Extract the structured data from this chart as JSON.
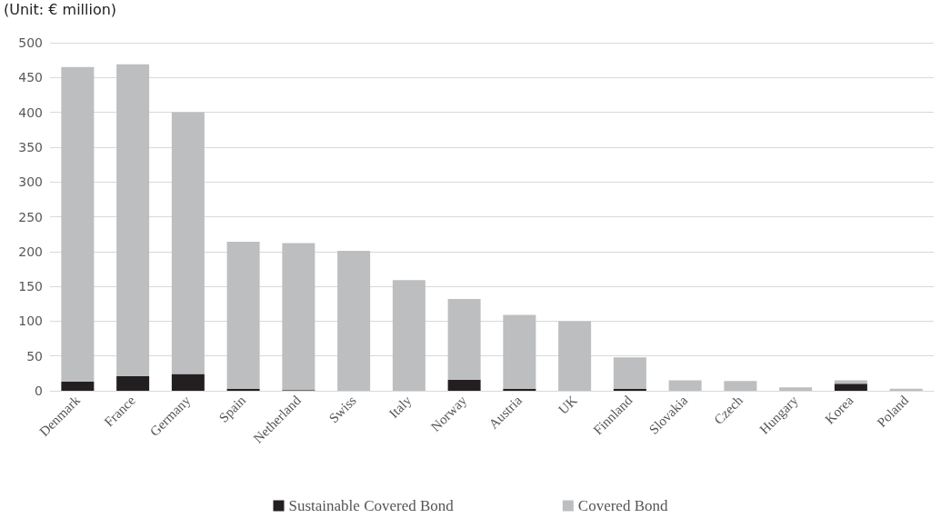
{
  "chart_data": {
    "type": "bar",
    "stacked": true,
    "annotations": [
      "(Unit: € million)"
    ],
    "categories": [
      "Denmark",
      "France",
      "Germany",
      "Spain",
      "Netherland",
      "Swiss",
      "Italy",
      "Norway",
      "Austria",
      "UK",
      "Finnland",
      "Slovakia",
      "Czech",
      "Hungary",
      "Korea",
      "Poland"
    ],
    "series": [
      {
        "name": "Sustainable Covered Bond",
        "color": "#231f20",
        "values": [
          13,
          21,
          24,
          3,
          1,
          0,
          0,
          16,
          3,
          0,
          3,
          0,
          0,
          0,
          10,
          0
        ]
      },
      {
        "name": "Covered Bond",
        "color": "#bcbec0",
        "values": [
          452,
          448,
          376,
          211,
          211,
          201,
          159,
          116,
          106,
          100,
          45,
          15,
          14,
          5,
          5,
          3
        ]
      }
    ],
    "ylim": [
      0,
      500
    ],
    "yticks": [
      0,
      50,
      100,
      150,
      200,
      250,
      300,
      350,
      400,
      450,
      500
    ],
    "grid": "y",
    "legend": "bottom"
  }
}
